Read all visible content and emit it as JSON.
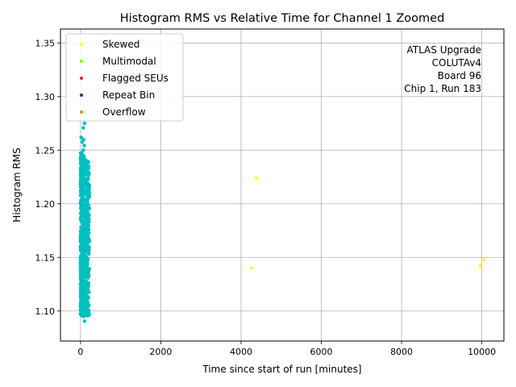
{
  "chart_data": {
    "type": "scatter",
    "title": "Histogram RMS vs Relative Time for Channel 1 Zoomed",
    "xlabel": "Time since start of run [minutes]",
    "ylabel": "Histogram RMS",
    "xlim": [
      -500,
      10550
    ],
    "ylim": [
      1.072,
      1.363
    ],
    "xticks": [
      0,
      2000,
      4000,
      6000,
      8000,
      10000
    ],
    "yticks": [
      1.1,
      1.15,
      1.2,
      1.25,
      1.3,
      1.35
    ],
    "xtick_labels": [
      "0",
      "2000",
      "4000",
      "6000",
      "8000",
      "10000"
    ],
    "ytick_labels": [
      "1.10",
      "1.15",
      "1.20",
      "1.25",
      "1.30",
      "1.35"
    ],
    "grid": true,
    "legend_position": "top-left",
    "annotation": [
      "ATLAS Upgrade",
      "COLUTAv4",
      "Board 96",
      "Chip 1, Run 183"
    ],
    "base_series": {
      "color": "#00bfbf",
      "x_range": [
        0,
        220
      ],
      "y_range": [
        1.085,
        1.293
      ],
      "description_in_plot": "dense vertical band of points"
    },
    "series": [
      {
        "name": "Skewed",
        "color": "#ffff00",
        "x": [
          4260,
          4380,
          9960,
          10060
        ],
        "y": [
          1.14,
          1.224,
          1.142,
          1.148
        ]
      },
      {
        "name": "Multimodal",
        "color": "#7fff00",
        "x": [],
        "y": []
      },
      {
        "name": "Flagged SEUs",
        "color": "#d62728",
        "x": [],
        "y": []
      },
      {
        "name": "Repeat Bin",
        "color": "#800080",
        "x": [],
        "y": []
      },
      {
        "name": "Overflow",
        "color": "#ff7f0e",
        "x": [],
        "y": []
      }
    ]
  }
}
